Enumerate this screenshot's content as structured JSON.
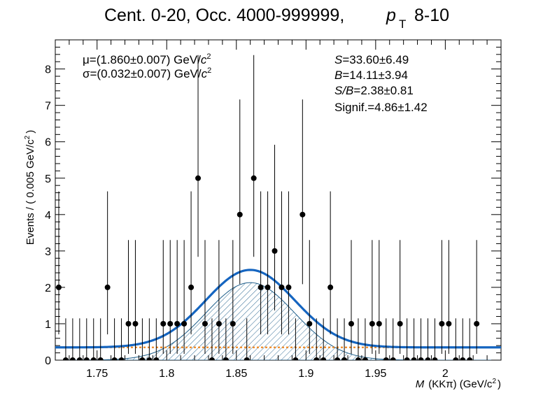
{
  "title": {
    "main": "Cent. 0-20, Occ. 4000-999999,",
    "pt_symbol": "p",
    "pt_sub": "T",
    "pt_range": "8-10"
  },
  "fit_params": {
    "mu_text": "μ=(1.860±0.007) GeV/",
    "sigma_text": "σ=(0.032±0.007) GeV/",
    "unit_c": "c",
    "unit_exp": "2"
  },
  "stats": {
    "s_sym": "S",
    "s_val": "=33.60±6.49",
    "b_sym": "B",
    "b_val": "=14.11±3.94",
    "sb_sym": "S/B",
    "sb_val": "=2.38±0.81",
    "signif": "Signif.=4.86±1.42"
  },
  "axes": {
    "ylabel": "Events / ( 0.005 GeV/c",
    "ylabel_exp": "2",
    "ylabel_close": ")",
    "xlabel_sym": "M",
    "xlabel": "(KKπ) (GeV/c",
    "xlabel_exp": "2",
    "xlabel_close": ")"
  },
  "chart_data": {
    "type": "scatter",
    "x_range": [
      1.72,
      2.04
    ],
    "y_range": [
      0,
      8.8
    ],
    "x_ticks": [
      "1.75",
      "1.8",
      "1.85",
      "1.9",
      "1.95",
      "2"
    ],
    "x_tick_values": [
      1.75,
      1.8,
      1.85,
      1.9,
      1.95,
      2.0
    ],
    "y_ticks": [
      "0",
      "1",
      "2",
      "3",
      "4",
      "5",
      "6",
      "7",
      "8"
    ],
    "y_tick_values": [
      0,
      1,
      2,
      3,
      4,
      5,
      6,
      7,
      8
    ],
    "bin_width": 0.005,
    "x_start": 1.7225,
    "counts": [
      2,
      0,
      0,
      0,
      0,
      0,
      0,
      2,
      0,
      0,
      1,
      1,
      0,
      0,
      0,
      1,
      1,
      1,
      1,
      2,
      5,
      1,
      0,
      1,
      0,
      1,
      4,
      0,
      5,
      2,
      2,
      3,
      2,
      2,
      0,
      4,
      1,
      0,
      0,
      2,
      0,
      0,
      1,
      0,
      0,
      1,
      1,
      0,
      0,
      1,
      0,
      0,
      0,
      0,
      0,
      1,
      1,
      0,
      0,
      0,
      1
    ],
    "fit": {
      "mu": 1.86,
      "sigma": 0.032,
      "background_level": 0.35,
      "signal_amplitude": 2.13,
      "colors": {
        "total": "#1565c0",
        "background": "#f08a24",
        "signal_hatch": "#1f5f8b",
        "points": "#000000"
      }
    }
  }
}
